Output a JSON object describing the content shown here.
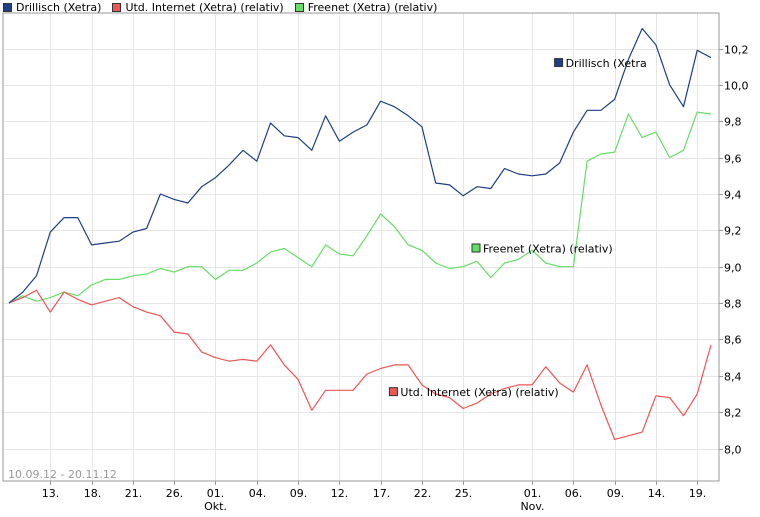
{
  "chart_data": {
    "type": "line",
    "date_range": "10.09.12 - 20.11.12",
    "ylim": [
      7.8,
      10.4
    ],
    "y_ticks": [
      8.0,
      8.2,
      8.4,
      8.6,
      8.8,
      9.0,
      9.2,
      9.4,
      9.6,
      9.8,
      10.0,
      10.2
    ],
    "y_tick_labels": [
      "8,0",
      "8,2",
      "8,4",
      "8,6",
      "8,8",
      "9,0",
      "9,2",
      "9,4",
      "9,6",
      "9,8",
      "10,0",
      "10,2"
    ],
    "x_ticks": [
      {
        "index": 3,
        "label": "13."
      },
      {
        "index": 6,
        "label": "18."
      },
      {
        "index": 9,
        "label": "21."
      },
      {
        "index": 12,
        "label": "26."
      },
      {
        "index": 15,
        "label": "01.",
        "sublabel": "Okt."
      },
      {
        "index": 18,
        "label": "04."
      },
      {
        "index": 21,
        "label": "09."
      },
      {
        "index": 24,
        "label": "12."
      },
      {
        "index": 27,
        "label": "17."
      },
      {
        "index": 30,
        "label": "22."
      },
      {
        "index": 33,
        "label": "25."
      },
      {
        "index": 38,
        "label": "01.",
        "sublabel": "Nov."
      },
      {
        "index": 41,
        "label": "06."
      },
      {
        "index": 44,
        "label": "09."
      },
      {
        "index": 47,
        "label": "14."
      },
      {
        "index": 50,
        "label": "19."
      }
    ],
    "n_points": 52,
    "series": [
      {
        "name": "Drillisch (Xetra)",
        "color": "#1f3e86",
        "label": "Drillisch (Xetra",
        "values": [
          8.8,
          8.86,
          8.95,
          9.19,
          9.27,
          9.27,
          9.12,
          9.13,
          9.14,
          9.19,
          9.21,
          9.4,
          9.37,
          9.35,
          9.44,
          9.49,
          9.56,
          9.64,
          9.58,
          9.79,
          9.72,
          9.71,
          9.64,
          9.83,
          9.69,
          9.74,
          9.78,
          9.91,
          9.88,
          9.83,
          9.77,
          9.46,
          9.45,
          9.39,
          9.44,
          9.43,
          9.54,
          9.51,
          9.5,
          9.51,
          9.57,
          9.74,
          9.86,
          9.86,
          9.92,
          10.14,
          10.31,
          10.22,
          10.0,
          9.88,
          10.19,
          10.15
        ],
        "label_anchor": {
          "index": 40,
          "value": 10.12
        }
      },
      {
        "name": "Utd. Internet (Xetra) (relativ)",
        "color": "#ee5555",
        "label": "Utd. Internet (Xetra) (relativ)",
        "values": [
          8.8,
          8.83,
          8.87,
          8.75,
          8.86,
          8.82,
          8.79,
          8.81,
          8.83,
          8.78,
          8.75,
          8.73,
          8.64,
          8.63,
          8.53,
          8.5,
          8.48,
          8.49,
          8.48,
          8.57,
          8.46,
          8.38,
          8.21,
          8.32,
          8.32,
          8.32,
          8.41,
          8.44,
          8.46,
          8.46,
          8.35,
          8.3,
          8.28,
          8.22,
          8.25,
          8.3,
          8.33,
          8.35,
          8.35,
          8.45,
          8.36,
          8.31,
          8.46,
          8.24,
          8.05,
          8.07,
          8.09,
          8.29,
          8.28,
          8.18,
          8.3,
          8.57
        ],
        "label_anchor": {
          "index": 28,
          "value": 8.31
        }
      },
      {
        "name": "Freenet (Xetra) (relativ)",
        "color": "#66dd66",
        "label": "Freenet (Xetra) (relativ)",
        "values": [
          8.8,
          8.84,
          8.81,
          8.83,
          8.86,
          8.84,
          8.9,
          8.93,
          8.93,
          8.95,
          8.96,
          8.99,
          8.97,
          9.0,
          9.0,
          8.93,
          8.98,
          8.98,
          9.02,
          9.08,
          9.1,
          9.05,
          9.0,
          9.12,
          9.07,
          9.06,
          9.17,
          9.29,
          9.22,
          9.12,
          9.09,
          9.02,
          8.99,
          9.0,
          9.03,
          8.94,
          9.02,
          9.04,
          9.09,
          9.02,
          9.0,
          9.0,
          9.58,
          9.62,
          9.63,
          9.84,
          9.71,
          9.74,
          9.6,
          9.64,
          9.85,
          9.84
        ],
        "label_anchor": {
          "index": 34,
          "value": 9.1
        }
      }
    ]
  }
}
